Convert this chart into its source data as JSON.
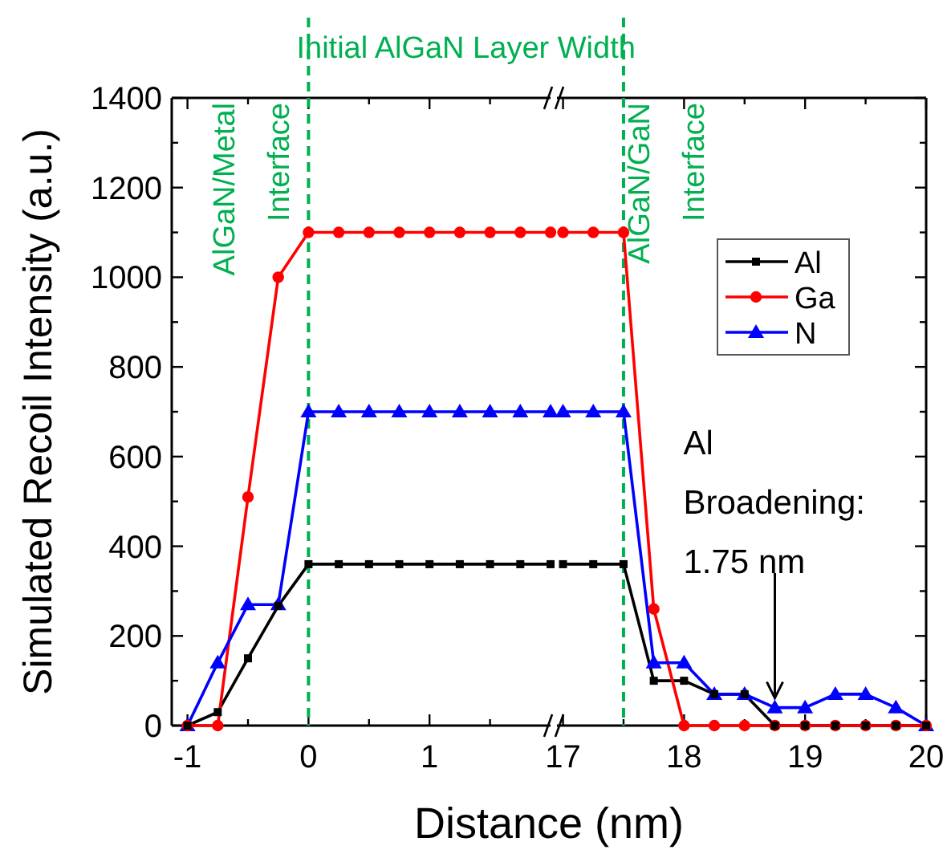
{
  "chart_data": [
    {
      "type": "line",
      "ylabel": "Simulated Recoil Intensity (a.u.)",
      "xlabel": "Distance (nm)",
      "xlim": [
        -1.13,
        2
      ],
      "xticks": [
        -1,
        {
          "value": -0.5,
          "label": null
        },
        0,
        {
          "value": 0.5,
          "label": null
        },
        1,
        {
          "value": 1.5,
          "label": null
        }
      ],
      "ylim": [
        0,
        1400
      ],
      "yticks": [
        0,
        {
          "value": 100,
          "label": null
        },
        200,
        {
          "value": 300,
          "label": null
        },
        400,
        {
          "value": 500,
          "label": null
        },
        600,
        {
          "value": 700,
          "label": null
        },
        800,
        {
          "value": 900,
          "label": null
        },
        1000,
        {
          "value": 1100,
          "label": null
        },
        1200,
        {
          "value": 1300,
          "label": null
        },
        1400
      ],
      "legend": false,
      "x": [
        -1,
        -0.75,
        -0.5,
        -0.25,
        0,
        0.25,
        0.5,
        0.75,
        1,
        1.25,
        1.5,
        1.75,
        2
      ],
      "series": [
        {
          "color": "#000000",
          "marker": "square",
          "values": [
            0,
            30,
            150,
            267,
            360,
            360,
            360,
            360,
            360,
            360,
            360,
            360,
            360
          ]
        },
        {
          "color": "#ff0000",
          "marker": "circle",
          "values": [
            0,
            0,
            510,
            1000,
            1100,
            1100,
            1100,
            1100,
            1100,
            1100,
            1100,
            1100,
            1100
          ]
        },
        {
          "color": "#0000ff",
          "marker": "triangle",
          "values": [
            0,
            140,
            270,
            270,
            700,
            700,
            700,
            700,
            700,
            700,
            700,
            700,
            700
          ]
        }
      ],
      "ref_lines": [
        {
          "axis": "x",
          "value": 0,
          "label": "AlGaN/Metal\nInterface",
          "color": "#00b050",
          "line_style": "dashed"
        }
      ],
      "annotations": [
        "Initial AlGaN Layer Width"
      ]
    },
    {
      "type": "line",
      "xlim": [
        16.95,
        20
      ],
      "xticks": [
        17,
        {
          "value": 17.5,
          "label": null
        },
        18,
        {
          "value": 18.5,
          "label": null
        },
        19,
        {
          "value": 19.5,
          "label": null
        },
        20
      ],
      "ylim": [
        0,
        1400
      ],
      "yticks": [
        0,
        {
          "value": 100,
          "label": null
        },
        200,
        {
          "value": 300,
          "label": null
        },
        400,
        {
          "value": 500,
          "label": null
        },
        600,
        {
          "value": 700,
          "label": null
        },
        800,
        {
          "value": 900,
          "label": null
        },
        1000,
        {
          "value": 1100,
          "label": null
        },
        1200,
        {
          "value": 1300,
          "label": null
        },
        1400
      ],
      "tick_labels": "x",
      "legend": "right",
      "x": [
        17,
        17.25,
        17.5,
        17.75,
        18,
        18.25,
        18.5,
        18.75,
        19,
        19.25,
        19.5,
        19.75,
        20
      ],
      "series": [
        {
          "name": "Al",
          "color": "#000000",
          "marker": "square",
          "values": [
            360,
            360,
            360,
            100,
            100,
            70,
            70,
            0,
            0,
            0,
            0,
            0,
            0
          ]
        },
        {
          "name": "Ga",
          "color": "#ff0000",
          "marker": "circle",
          "values": [
            1100,
            1100,
            1100,
            260,
            0,
            0,
            0,
            0,
            0,
            0,
            0,
            0,
            0
          ]
        },
        {
          "name": "N",
          "color": "#0000ff",
          "marker": "triangle",
          "values": [
            700,
            700,
            700,
            140,
            140,
            70,
            70,
            40,
            40,
            70,
            70,
            40,
            0
          ]
        }
      ],
      "ref_lines": [
        {
          "axis": "x",
          "value": 17.5,
          "label": "AlGaN/GaN\nInterface",
          "color": "#00b050",
          "line_style": "dashed"
        }
      ],
      "annotations": [
        {
          "text": "Al\nBroadening:\n1.75 nm",
          "x": 18.75,
          "y": 40
        }
      ]
    }
  ]
}
